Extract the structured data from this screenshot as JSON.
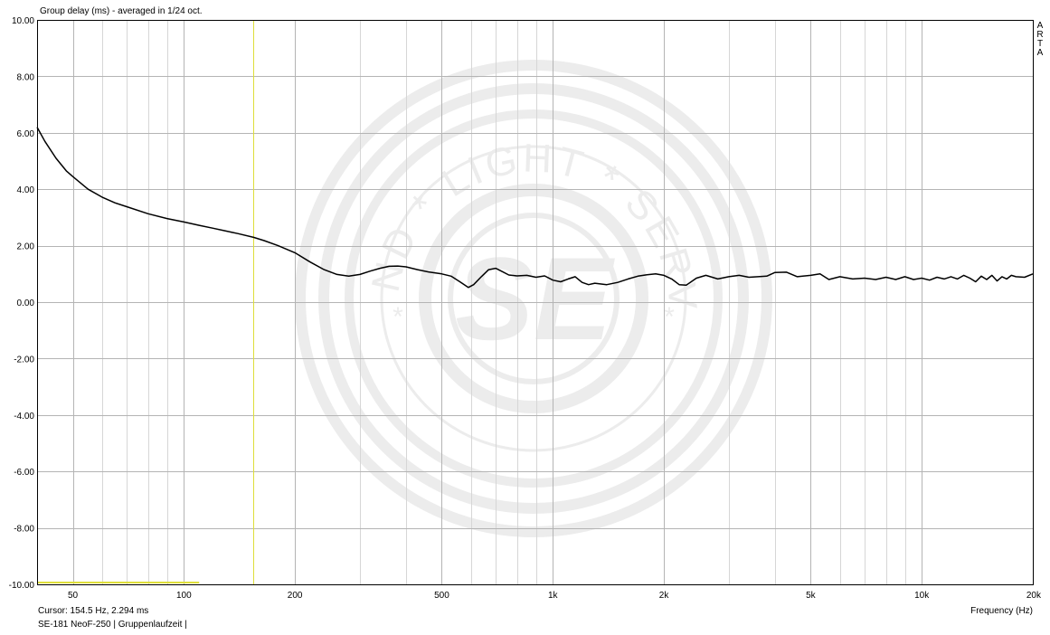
{
  "title": "Group delay (ms) - averaged in 1/24 oct.",
  "cursor_readout": "Cursor: 154.5 Hz, 2.294 ms",
  "footer": "SE-181 NeoF-250 | Gruppenlaufzeit |",
  "brand_letters": [
    "A",
    "R",
    "T",
    "A"
  ],
  "watermark": {
    "ring_text_top": "SOUND * LIGHT * SERVICE",
    "ring_text_left_star": "*",
    "ring_text_right_star": "*",
    "logo": "SE"
  },
  "colors": {
    "background": "#ffffff",
    "grid": "#b4b4b4",
    "curve": "#000000",
    "cursor": "#dede3a",
    "watermark": "#ececec"
  },
  "chart_data": {
    "type": "line",
    "title": "Group delay (ms) - averaged in 1/24 oct.",
    "xlabel": "Frequency (Hz)",
    "ylabel": "",
    "xscale": "log",
    "xlim": [
      40,
      20000
    ],
    "ylim": [
      -10,
      10
    ],
    "x_tick_values": [
      50,
      100,
      200,
      500,
      1000,
      2000,
      5000,
      10000,
      20000
    ],
    "x_tick_labels": [
      "50",
      "100",
      "200",
      "500",
      "1k",
      "2k",
      "5k",
      "10k",
      "20k"
    ],
    "x_minor_grid": [
      40,
      60,
      70,
      80,
      90,
      300,
      400,
      600,
      700,
      800,
      900,
      3000,
      4000,
      6000,
      7000,
      8000,
      9000
    ],
    "y_tick_values": [
      10,
      8,
      6,
      4,
      2,
      0,
      -2,
      -4,
      -6,
      -8,
      -10
    ],
    "y_tick_labels": [
      "10.00",
      "8.00",
      "6.00",
      "4.00",
      "2.00",
      "0.00",
      "-2.00",
      "-4.00",
      "-6.00",
      "-8.00",
      "-10.00"
    ],
    "grid": true,
    "cursor": {
      "x": 154.5,
      "y": 2.294
    },
    "series": [
      {
        "x": [
          40,
          42,
          45,
          48,
          50,
          55,
          60,
          65,
          70,
          80,
          90,
          100,
          110,
          120,
          130,
          140,
          154.5,
          165,
          180,
          200,
          220,
          240,
          260,
          280,
          300,
          320,
          340,
          360,
          380,
          400,
          430,
          460,
          500,
          530,
          560,
          590,
          610,
          640,
          670,
          700,
          730,
          760,
          800,
          850,
          900,
          950,
          1000,
          1050,
          1100,
          1150,
          1200,
          1250,
          1300,
          1400,
          1500,
          1600,
          1700,
          1800,
          1900,
          2000,
          2100,
          2200,
          2300,
          2450,
          2600,
          2800,
          3000,
          3200,
          3400,
          3600,
          3800,
          4000,
          4300,
          4600,
          5000,
          5300,
          5600,
          6000,
          6500,
          7000,
          7500,
          8000,
          8500,
          9000,
          9500,
          10000,
          10500,
          11000,
          11500,
          12000,
          12500,
          13000,
          13500,
          14000,
          14500,
          15000,
          15500,
          16000,
          16500,
          17000,
          17500,
          18000,
          19000,
          20000
        ],
        "values": [
          6.2,
          5.7,
          5.1,
          4.65,
          4.45,
          4.0,
          3.72,
          3.52,
          3.38,
          3.13,
          2.96,
          2.84,
          2.72,
          2.62,
          2.52,
          2.43,
          2.294,
          2.18,
          2.0,
          1.75,
          1.42,
          1.15,
          0.98,
          0.92,
          0.98,
          1.1,
          1.2,
          1.27,
          1.28,
          1.25,
          1.15,
          1.07,
          1.0,
          0.92,
          0.72,
          0.52,
          0.62,
          0.9,
          1.15,
          1.2,
          1.08,
          0.96,
          0.93,
          0.95,
          0.88,
          0.93,
          0.78,
          0.72,
          0.82,
          0.9,
          0.7,
          0.62,
          0.67,
          0.62,
          0.7,
          0.82,
          0.92,
          0.97,
          1.0,
          0.95,
          0.82,
          0.62,
          0.6,
          0.85,
          0.95,
          0.82,
          0.9,
          0.95,
          0.88,
          0.9,
          0.92,
          1.05,
          1.06,
          0.9,
          0.95,
          1.0,
          0.8,
          0.9,
          0.82,
          0.85,
          0.8,
          0.88,
          0.8,
          0.9,
          0.8,
          0.85,
          0.78,
          0.88,
          0.82,
          0.9,
          0.82,
          0.95,
          0.85,
          0.72,
          0.92,
          0.8,
          0.95,
          0.75,
          0.9,
          0.82,
          0.95,
          0.9,
          0.88,
          1.0
        ]
      }
    ]
  }
}
